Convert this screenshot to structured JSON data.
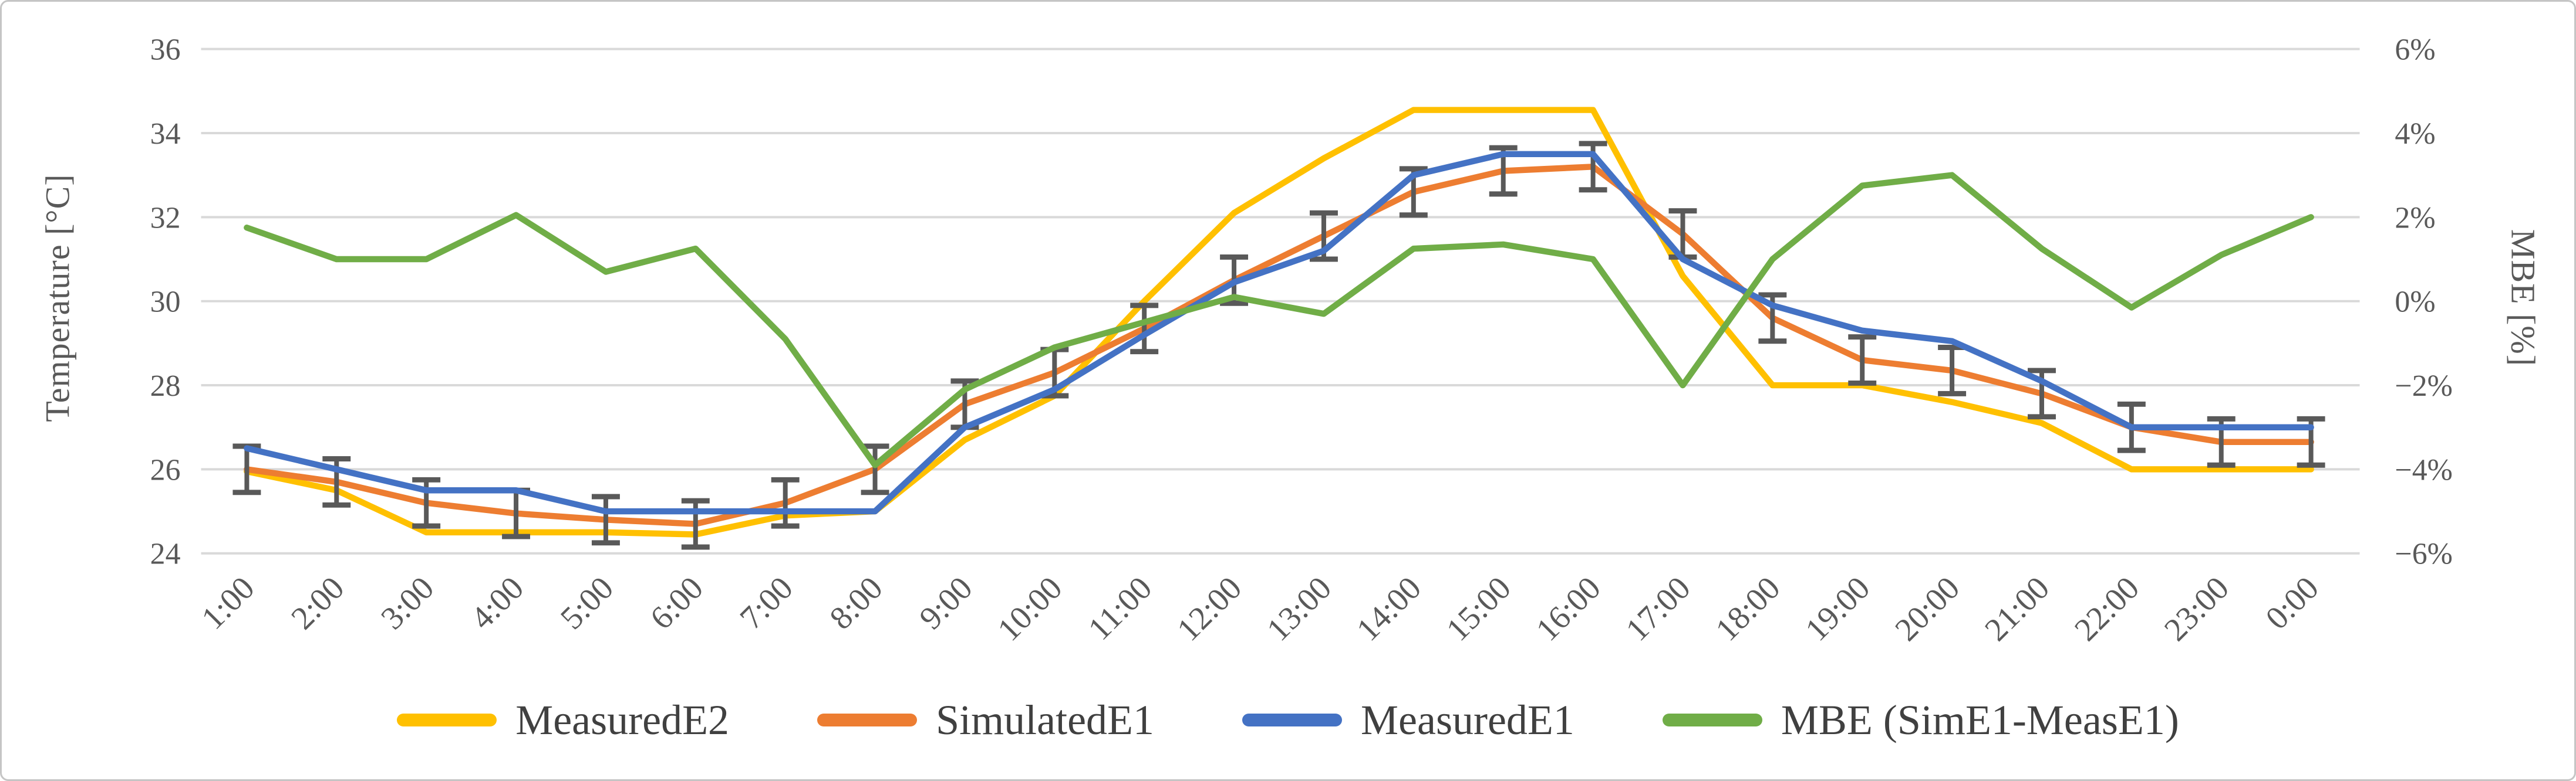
{
  "figure": {
    "background": "#ffffff",
    "border_color": "#c5c5c5"
  },
  "chart_data": {
    "type": "line",
    "title": "",
    "grid": true,
    "legend_position": "bottom",
    "categories": [
      "1:00",
      "2:00",
      "3:00",
      "4:00",
      "5:00",
      "6:00",
      "7:00",
      "8:00",
      "9:00",
      "10:00",
      "11:00",
      "12:00",
      "13:00",
      "14:00",
      "15:00",
      "16:00",
      "17:00",
      "18:00",
      "19:00",
      "20:00",
      "21:00",
      "22:00",
      "23:00",
      "0:00"
    ],
    "y_left": {
      "label": "Temperature [°C]",
      "min": 24,
      "max": 36,
      "ticks": [
        "36",
        "34",
        "32",
        "30",
        "28",
        "26",
        "24"
      ],
      "tick_values": [
        36,
        34,
        32,
        30,
        28,
        26,
        24
      ]
    },
    "y_right": {
      "label": "MBE [%]",
      "min": -6,
      "max": 6,
      "ticks": [
        "6%",
        "4%",
        "2%",
        "0%",
        "−2%",
        "−4%",
        "−6%"
      ],
      "tick_values": [
        6,
        4,
        2,
        0,
        -2,
        -4,
        -6
      ]
    },
    "series": [
      {
        "name": "MeasuredE2",
        "color": "#FFC000",
        "axis": "left",
        "values": [
          25.95,
          25.5,
          24.5,
          24.5,
          24.5,
          24.45,
          24.9,
          25.0,
          26.7,
          27.75,
          30.0,
          32.1,
          33.4,
          34.55,
          34.55,
          34.55,
          30.6,
          28.0,
          28.0,
          27.6,
          27.1,
          26.0,
          26.0,
          26.0
        ]
      },
      {
        "name": "SimulatedE1",
        "color": "#ED7D31",
        "axis": "left",
        "values": [
          26.0,
          25.7,
          25.2,
          24.95,
          24.8,
          24.7,
          25.2,
          26.0,
          27.55,
          28.3,
          29.35,
          30.5,
          31.55,
          32.6,
          33.1,
          33.2,
          31.6,
          29.6,
          28.6,
          28.35,
          27.8,
          27.0,
          26.65,
          26.65
        ],
        "error_bars": {
          "half_width_c": 0.55,
          "color": "#595959"
        }
      },
      {
        "name": "MeasuredE1",
        "color": "#4472C4",
        "axis": "left",
        "values": [
          26.5,
          26.0,
          25.5,
          25.5,
          25.0,
          25.0,
          25.0,
          25.0,
          27.0,
          27.9,
          29.2,
          30.45,
          31.2,
          33.0,
          33.5,
          33.5,
          31.0,
          29.9,
          29.3,
          29.05,
          28.1,
          27.0,
          27.0,
          27.0
        ]
      },
      {
        "name": "MBE (SimE1-MeasE1)",
        "color": "#70AD47",
        "axis": "right",
        "values": [
          1.75,
          1.0,
          1.0,
          2.05,
          0.7,
          1.25,
          -0.9,
          -3.9,
          -2.1,
          -1.1,
          -0.5,
          0.1,
          -0.3,
          1.25,
          1.35,
          1.0,
          -2.0,
          1.0,
          2.75,
          3.0,
          1.25,
          -0.15,
          1.1,
          2.0
        ]
      }
    ],
    "style": {
      "gridline_color": "#d9d9d9",
      "tick_label_color": "#595959",
      "error_bar_color": "#595959",
      "line_width": 10.5
    }
  }
}
